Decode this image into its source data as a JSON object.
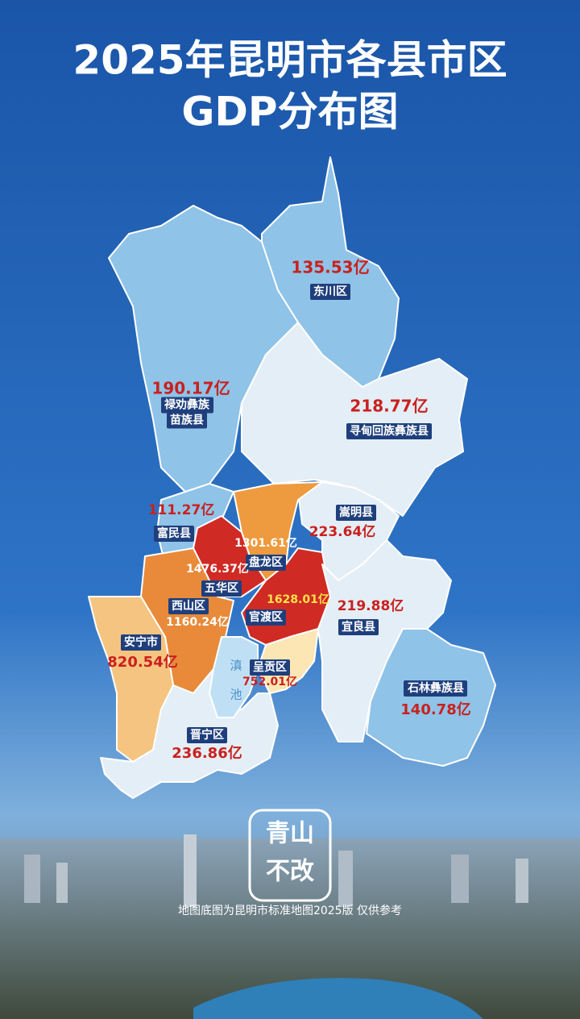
{
  "header": {
    "title_lines": [
      "2025年昆明市各县市区",
      "GDP分布图"
    ]
  },
  "regions": [
    {
      "name": [
        "东川区"
      ],
      "gdp": "135.53亿"
    },
    {
      "name": [
        "禄劝彝族",
        "苗族县"
      ],
      "gdp": "190.17亿"
    },
    {
      "name": [
        "寻甸回族彝族县"
      ],
      "gdp": "218.77亿"
    },
    {
      "name": [
        "嵩明县"
      ],
      "gdp": "223.64亿"
    },
    {
      "name": [
        "富民县"
      ],
      "gdp": "111.27亿"
    },
    {
      "name": [
        "盘龙区"
      ],
      "gdp": "1301.61亿"
    },
    {
      "name": [
        "五华区"
      ],
      "gdp": "1476.37亿"
    },
    {
      "name": [
        "西山区"
      ],
      "gdp": "1160.24亿"
    },
    {
      "name": [
        "官渡区"
      ],
      "gdp": "1628.01亿"
    },
    {
      "name": [
        "宜良县"
      ],
      "gdp": "219.88亿"
    },
    {
      "name": [
        "安宁市"
      ],
      "gdp": "820.54亿"
    },
    {
      "name": [
        "呈贡区"
      ],
      "gdp": "752.01亿"
    },
    {
      "name": [
        "石林彝族县"
      ],
      "gdp": "140.78亿"
    },
    {
      "name": [
        "晋宁区"
      ],
      "gdp": "236.86亿"
    }
  ],
  "lake": [
    "滇",
    "池"
  ],
  "logo": [
    "青山",
    "不改"
  ],
  "footnote": "地图底图为昆明市标准地图2025版 仅供参考"
}
